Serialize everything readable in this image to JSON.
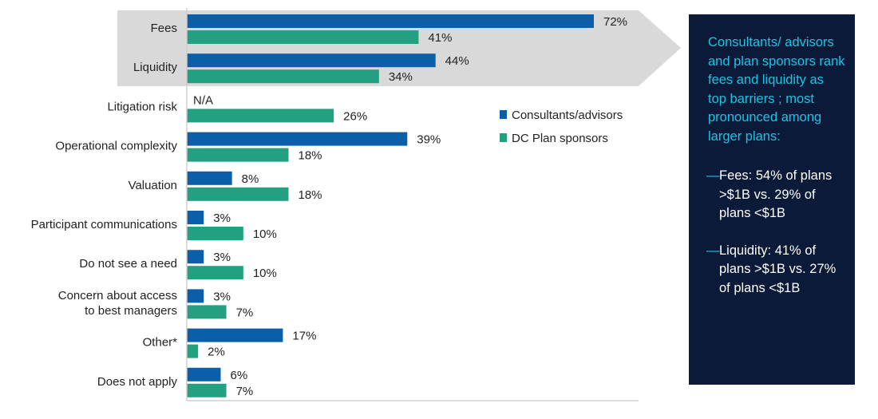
{
  "chart_data": {
    "type": "bar",
    "orientation": "horizontal",
    "categories": [
      "Fees",
      "Liquidity",
      "Litigation risk",
      "Operational complexity",
      "Valuation",
      "Participant communications",
      "Do not see a need",
      "Concern about access to best managers",
      "Other*",
      "Does not apply"
    ],
    "category_lines": [
      [
        "Fees"
      ],
      [
        "Liquidity"
      ],
      [
        "Litigation risk"
      ],
      [
        "Operational complexity"
      ],
      [
        "Valuation"
      ],
      [
        "Participant communications"
      ],
      [
        "Do not see a need"
      ],
      [
        "Concern about access",
        "to best managers"
      ],
      [
        "Other*"
      ],
      [
        "Does not apply"
      ]
    ],
    "series": [
      {
        "name": "Consultants/advisors",
        "color": "#0b5ea8",
        "values": [
          72,
          44,
          null,
          39,
          8,
          3,
          3,
          3,
          17,
          6
        ],
        "labels": [
          "72%",
          "44%",
          "N/A",
          "39%",
          "8%",
          "3%",
          "3%",
          "3%",
          "17%",
          "6%"
        ]
      },
      {
        "name": "DC Plan sponsors",
        "color": "#22a07f",
        "values": [
          41,
          34,
          26,
          18,
          18,
          10,
          10,
          7,
          2,
          7
        ],
        "labels": [
          "41%",
          "34%",
          "26%",
          "18%",
          "18%",
          "10%",
          "10%",
          "7%",
          "2%",
          "7%"
        ]
      }
    ],
    "unit": "%",
    "xlim": [
      0,
      80
    ],
    "highlighted_categories": [
      "Fees",
      "Liquidity"
    ],
    "highlight_color": "#d9d9d9",
    "grid": false,
    "legend_position": "center-right"
  },
  "panel": {
    "headline": "Consultants/ advisors and plan sponsors rank fees and liquidity  as top barriers ; most pronounced among larger plans:",
    "points": [
      "Fees:  54% of plans >$1B vs. 29% of plans <$1B",
      "Liquidity:  41% of plans >$1B vs. 27% of plans <$1B"
    ],
    "dash": "—",
    "background": "#0b1a38",
    "headline_color": "#1cc4e3"
  }
}
